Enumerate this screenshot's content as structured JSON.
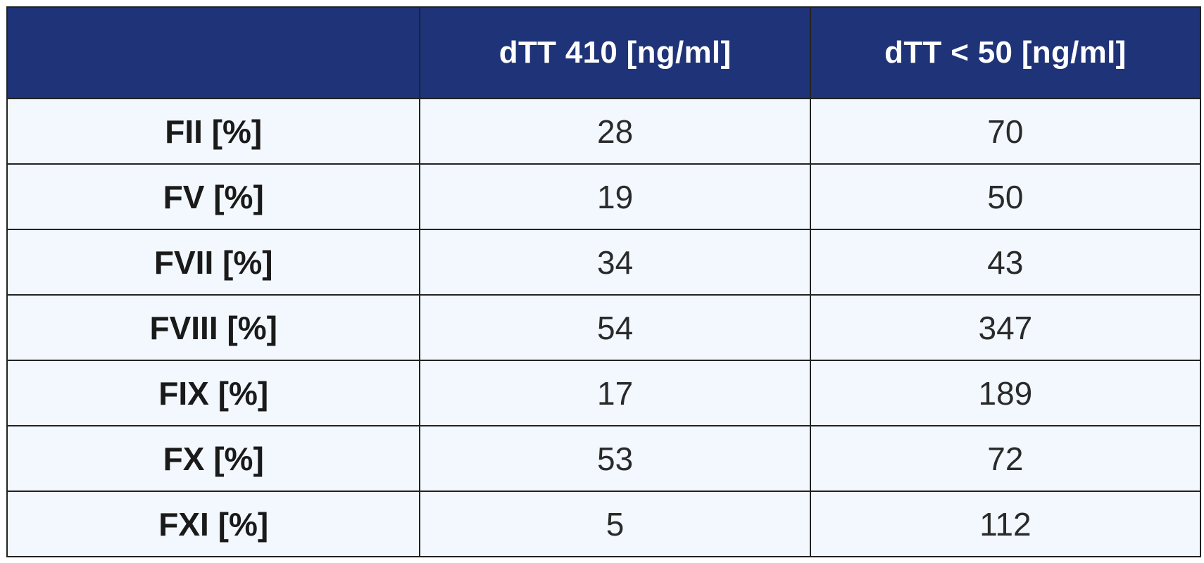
{
  "colors": {
    "header_bg": "#1e3378",
    "header_text": "#ffffff",
    "body_bg": "#f2f8fd",
    "border": "#222222"
  },
  "table": {
    "columns": [
      "",
      "dTT 410 [ng/ml]",
      "dTT < 50 [ng/ml]"
    ],
    "rows": [
      {
        "label": "FII [%]",
        "values": [
          "28",
          "70"
        ]
      },
      {
        "label": "FV [%]",
        "values": [
          "19",
          "50"
        ]
      },
      {
        "label": "FVII [%]",
        "values": [
          "34",
          "43"
        ]
      },
      {
        "label": "FVIII [%]",
        "values": [
          "54",
          "347"
        ]
      },
      {
        "label": "FIX [%]",
        "values": [
          "17",
          "189"
        ]
      },
      {
        "label": "FX [%]",
        "values": [
          "53",
          "72"
        ]
      },
      {
        "label": "FXI [%]",
        "values": [
          "5",
          "112"
        ]
      }
    ]
  }
}
